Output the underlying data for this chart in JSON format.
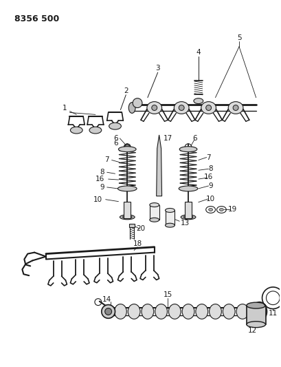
{
  "title": "8356 500",
  "bg_color": "#ffffff",
  "line_color": "#1a1a1a",
  "gray1": "#888888",
  "gray2": "#cccccc",
  "gray3": "#444444",
  "fig_width": 4.1,
  "fig_height": 5.33,
  "dpi": 100,
  "label_fs": 7.5,
  "title_fs": 9
}
